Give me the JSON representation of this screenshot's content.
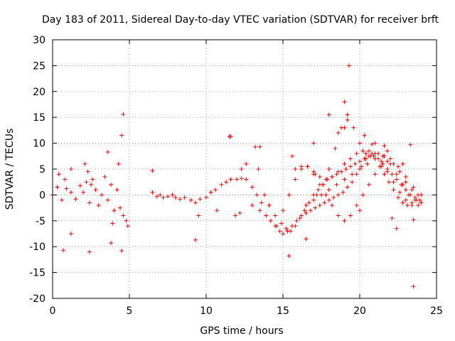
{
  "chart_data": {
    "type": "scatter",
    "title": "Day 183 of 2011, Sidereal Day-to-day VTEC variation (SDTVAR) for receiver brft",
    "xlabel": "GPS time / hours",
    "ylabel": "SDTVAR / TECUs",
    "xlim": [
      0,
      25
    ],
    "ylim": [
      -20,
      30
    ],
    "x_ticks": [
      "0",
      "5",
      "10",
      "15",
      "20",
      "25"
    ],
    "y_ticks": [
      "-20",
      "-15",
      "-10",
      "-5",
      "0",
      "5",
      "10",
      "15",
      "20",
      "25",
      "30"
    ],
    "grid": true,
    "marker": "+",
    "series_color": "#ff0000",
    "series": [
      {
        "name": "SDTVAR",
        "x": [
          0.0,
          0.3,
          0.6,
          0.9,
          1.2,
          1.5,
          1.8,
          2.0,
          2.2,
          2.4,
          2.6,
          2.8,
          3.0,
          3.2,
          3.4,
          3.6,
          3.8,
          4.0,
          4.2,
          4.4,
          4.6,
          4.8,
          0.4,
          0.8,
          1.2,
          2.1,
          2.3,
          2.5,
          3.6,
          3.9,
          4.3,
          4.5,
          4.6,
          4.9,
          0.7,
          1.2,
          2.4,
          3.8,
          4.5,
          6.5,
          6.5,
          6.8,
          7.0,
          7.2,
          7.5,
          7.8,
          8.0,
          8.3,
          8.6,
          9.0,
          9.3,
          9.6,
          10.0,
          10.3,
          10.6,
          11.0,
          11.3,
          11.6,
          12.0,
          12.3,
          12.6,
          13.0,
          13.3,
          13.6,
          9.3,
          9.5,
          10.7,
          11.6,
          11.9,
          12.2,
          12.6,
          13.2,
          13.4,
          13.0,
          13.5,
          13.9,
          14.2,
          14.5,
          14.8,
          15.0,
          15.3,
          15.6,
          15.9,
          16.2,
          16.5,
          16.8,
          17.1,
          17.4,
          17.7,
          18.0,
          18.3,
          18.6,
          18.9,
          19.2,
          19.5,
          19.8,
          20.1,
          20.4,
          20.7,
          21.0,
          21.3,
          21.6,
          21.9,
          22.2,
          22.5,
          22.8,
          23.1,
          23.4,
          23.7,
          24.0,
          13.8,
          14.1,
          14.5,
          14.9,
          15.2,
          15.5,
          15.8,
          16.1,
          16.4,
          16.7,
          17.0,
          17.3,
          17.6,
          17.9,
          18.2,
          18.5,
          18.8,
          19.1,
          19.4,
          19.7,
          20.0,
          20.3,
          20.6,
          20.9,
          21.2,
          21.5,
          21.8,
          22.1,
          22.4,
          22.7,
          23.0,
          23.3,
          23.6,
          23.9,
          14.6,
          15.0,
          15.4,
          15.8,
          16.2,
          16.6,
          17.0,
          17.4,
          17.8,
          18.2,
          18.6,
          19.0,
          19.4,
          19.8,
          20.2,
          20.6,
          21.0,
          21.4,
          21.8,
          22.2,
          22.6,
          23.0,
          23.4,
          23.8,
          15.8,
          16.2,
          16.6,
          17.0,
          17.4,
          17.8,
          18.2,
          18.6,
          19.0,
          19.4,
          19.8,
          20.2,
          20.6,
          21.0,
          21.4,
          21.8,
          22.2,
          22.6,
          23.0,
          23.4,
          23.8,
          16.5,
          17.0,
          17.5,
          18.0,
          18.5,
          19.0,
          19.5,
          20.0,
          20.5,
          21.0,
          21.5,
          22.0,
          22.5,
          23.0,
          23.5,
          24.0,
          17.2,
          17.6,
          18.0,
          18.4,
          18.8,
          19.2,
          19.6,
          20.0,
          20.4,
          20.8,
          21.2,
          21.6,
          22.0,
          22.4,
          22.8,
          23.2,
          23.6,
          11.5,
          12.3,
          13.5,
          17.0,
          18.0,
          19.0,
          19.2,
          19.3,
          19.0,
          20.3,
          21.0,
          21.6,
          22.1,
          22.4,
          23.3,
          23.5,
          23.5,
          15.4,
          15.6,
          16.5,
          17.1,
          18.6,
          20.0,
          20.8,
          21.8,
          22.8
        ],
        "y": [
          0.0,
          1.5,
          -1.0,
          1.2,
          0.5,
          -0.8,
          1.8,
          0.5,
          2.5,
          -1.5,
          3.0,
          1.0,
          -2.0,
          0.0,
          3.5,
          -1.0,
          2.0,
          -3.0,
          1.0,
          -2.5,
          -4.0,
          -5.0,
          4.0,
          3.0,
          5.0,
          6.0,
          4.5,
          2.0,
          8.3,
          -5.5,
          6.0,
          11.5,
          15.6,
          -6.0,
          -10.7,
          -7.5,
          -11.0,
          -9.3,
          -10.8,
          4.7,
          0.5,
          -0.3,
          0.0,
          -0.5,
          -0.3,
          0.0,
          -0.5,
          -0.8,
          -0.5,
          -1.0,
          -1.5,
          -0.8,
          -0.5,
          0.5,
          1.0,
          2.0,
          2.5,
          3.0,
          3.0,
          3.2,
          3.0,
          1.5,
          0.0,
          -1.5,
          -8.7,
          -4.0,
          -3.0,
          11.3,
          -4.0,
          -3.5,
          6.0,
          9.3,
          5.0,
          -2.0,
          -3.0,
          -4.0,
          -5.0,
          -6.0,
          -7.0,
          -7.5,
          -7.0,
          -6.0,
          -5.0,
          -4.0,
          -3.5,
          -3.0,
          -2.5,
          -2.0,
          -1.5,
          -1.0,
          -0.5,
          0.0,
          0.5,
          1.5,
          2.5,
          4.0,
          5.5,
          7.0,
          7.5,
          7.0,
          5.5,
          4.0,
          2.5,
          1.0,
          -0.5,
          -1.5,
          -2.0,
          -1.5,
          -1.0,
          -1.5,
          0.0,
          -2.0,
          -4.0,
          -5.5,
          -6.5,
          -7.0,
          -6.0,
          -4.5,
          -3.0,
          -1.5,
          0.0,
          1.0,
          2.0,
          3.0,
          3.5,
          4.0,
          4.5,
          5.0,
          5.5,
          6.0,
          6.5,
          7.0,
          7.5,
          7.5,
          7.0,
          6.0,
          5.0,
          4.0,
          3.0,
          2.0,
          1.0,
          0.0,
          -0.5,
          -1.0,
          -6.0,
          -3.0,
          0.0,
          3.0,
          5.0,
          5.5,
          4.0,
          2.0,
          0.0,
          -2.0,
          -4.0,
          -5.0,
          -4.0,
          -2.0,
          0.0,
          2.0,
          4.0,
          5.5,
          6.5,
          6.0,
          4.5,
          2.5,
          1.0,
          0.0,
          5.0,
          5.5,
          5.5,
          4.5,
          3.5,
          3.0,
          3.5,
          4.5,
          6.0,
          7.0,
          8.0,
          8.5,
          8.5,
          8.0,
          6.5,
          4.5,
          2.5,
          0.5,
          -1.0,
          -2.0,
          -2.0,
          -2.0,
          -1.0,
          0.0,
          1.0,
          2.0,
          3.0,
          4.0,
          5.0,
          6.0,
          7.0,
          7.5,
          7.0,
          5.5,
          3.5,
          1.5,
          0.0,
          0.0,
          2.0,
          5.0,
          9.0,
          13.0,
          14.5,
          13.0,
          10.0,
          8.0,
          8.0,
          8.0,
          7.5,
          6.0,
          4.0,
          2.0,
          0.0,
          -1.0,
          11.3,
          5.0,
          9.3,
          10.0,
          15.5,
          18.0,
          15.5,
          25.0,
          13.0,
          11.5,
          10.0,
          9.5,
          -4.5,
          -6.5,
          9.7,
          -17.7,
          -4.8,
          -11.8,
          7.5,
          -8.5,
          4.0,
          12.0,
          -3.0,
          9.8,
          8.5,
          6.0
        ]
      }
    ]
  }
}
